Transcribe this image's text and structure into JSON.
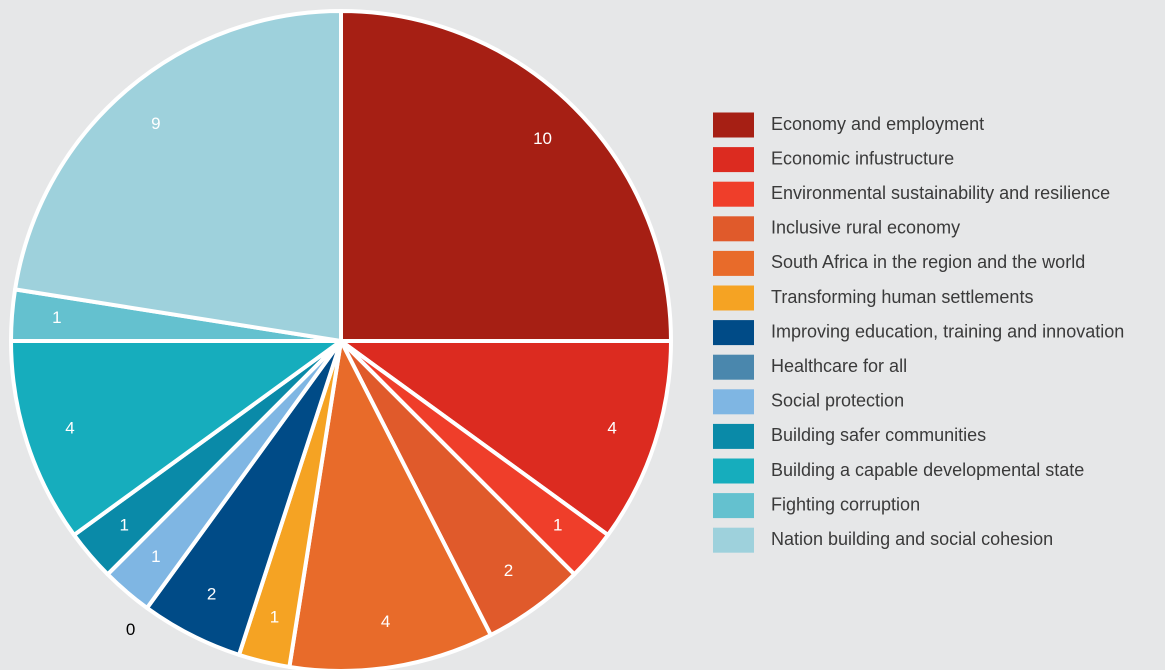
{
  "chart_data": {
    "type": "pie",
    "categories": [
      "Economy and employment",
      "Economic infustructure",
      "Environmental sustainability and resilience",
      "Inclusive rural economy",
      "South Africa in the region and the world",
      "Transforming human settlements",
      "Improving education, training and innovation",
      "Healthcare for all",
      "Social protection",
      "Building safer communities",
      "Building a capable developmental state",
      "Fighting corruption",
      "Nation building and social cohesion"
    ],
    "values": [
      10,
      4,
      1,
      2,
      4,
      1,
      2,
      0,
      1,
      1,
      4,
      1,
      9
    ],
    "colors": [
      "#a61f14",
      "#dc2b20",
      "#ef3e2a",
      "#e05a2b",
      "#e86b2a",
      "#f5a323",
      "#004b87",
      "#4a87ad",
      "#7fb6e3",
      "#0a8aa8",
      "#16adbd",
      "#64c1cf",
      "#9ed1dc"
    ],
    "legend": "right"
  }
}
